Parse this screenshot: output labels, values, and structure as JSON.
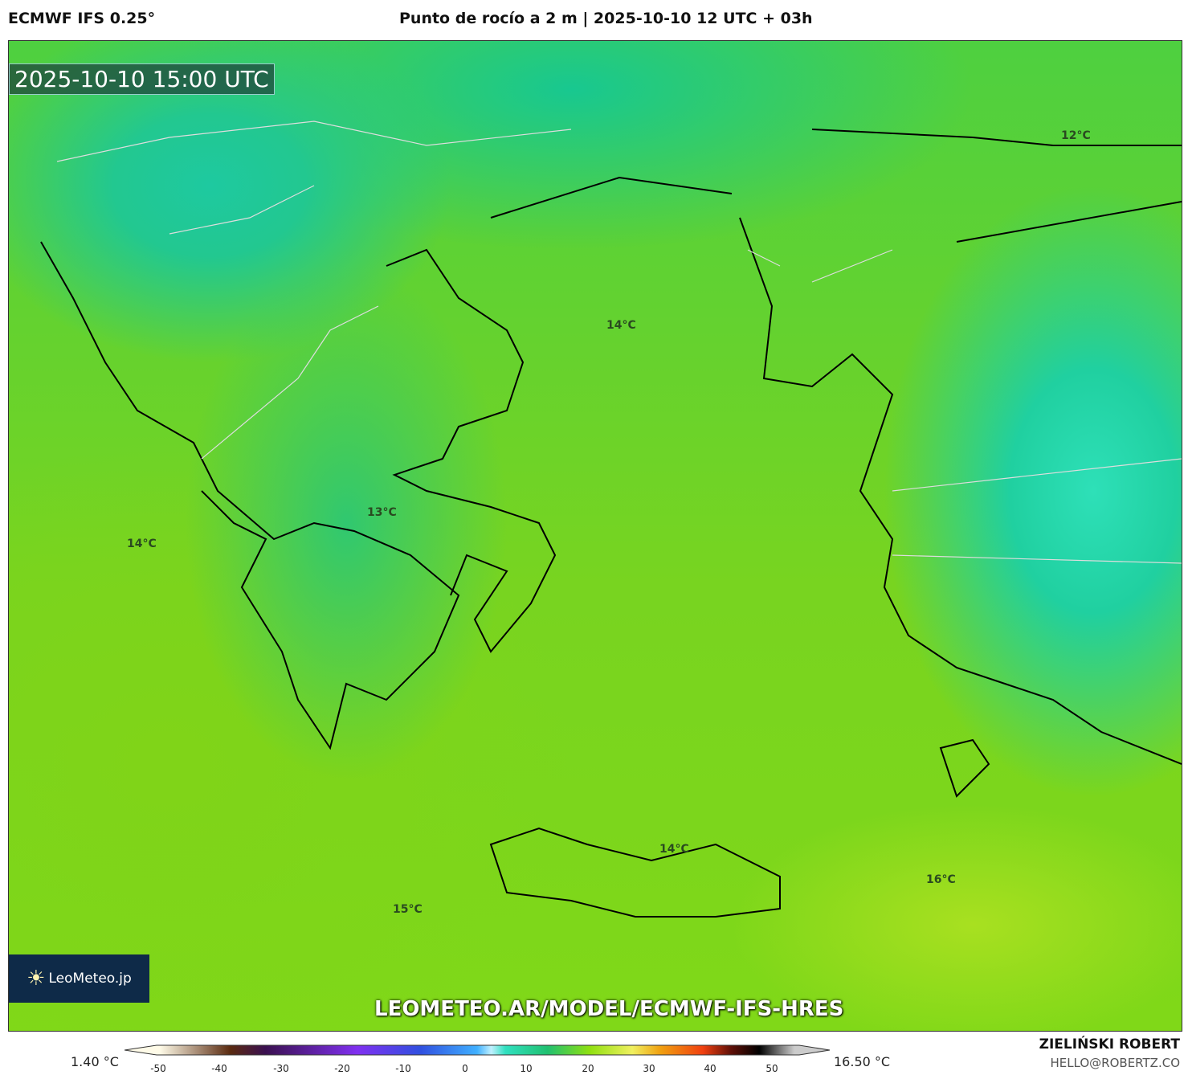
{
  "header": {
    "model": "ECMWF IFS 0.25°",
    "title": "Punto de rocío a 2 m | 2025-10-10 12 UTC + 03h"
  },
  "map": {
    "timestamp": "2025-10-10 15:00 UTC",
    "url": "LEOMETEO.AR/MODEL/ECMWF-IFS-HRES",
    "logo": "LeoMeteo.jp",
    "contour_labels": [
      "12°C",
      "14°C",
      "13°C",
      "14°C",
      "14°C",
      "15°C",
      "16°C"
    ]
  },
  "colorbar": {
    "min_label": "1.40 °C",
    "max_label": "16.50 °C",
    "ticks": [
      "-50",
      "-40",
      "-30",
      "-20",
      "-10",
      "0",
      "10",
      "20",
      "30",
      "40",
      "50"
    ]
  },
  "credits": {
    "author": "ZIELIŃSKI ROBERT",
    "email": "HELLO@ROBERTZ.CO"
  }
}
